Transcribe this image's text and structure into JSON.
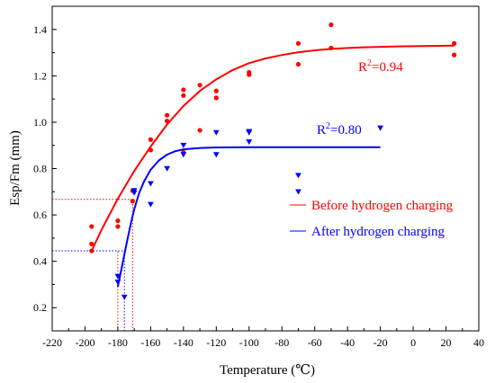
{
  "chart_data": {
    "type": "scatter",
    "xlabel": "Temperature (℃)",
    "ylabel": "Esp/Fm (mm)",
    "xlim": [
      -220,
      40
    ],
    "ylim": [
      0.1,
      1.5
    ],
    "xticks": [
      -220,
      -200,
      -180,
      -160,
      -140,
      -120,
      -100,
      -80,
      -60,
      -40,
      -20,
      0,
      20,
      40
    ],
    "yticks": [
      0.2,
      0.4,
      0.6,
      0.8,
      1.0,
      1.2,
      1.4
    ],
    "ytick_labels": [
      "0.2",
      "0.4",
      "0.6",
      "0.8",
      "1.0",
      "1.2",
      "1.4"
    ],
    "grid": false,
    "legend_position": "right, below curves",
    "series": [
      {
        "name": "Before hydrogen charging",
        "color": "#ff0000",
        "marker": "circle",
        "r2_label": "R",
        "r2_sup": "2",
        "r2_value": "=0.94",
        "points": [
          [
            -196,
            0.55
          ],
          [
            -196,
            0.475
          ],
          [
            -196,
            0.445
          ],
          [
            -180,
            0.575
          ],
          [
            -180,
            0.55
          ],
          [
            -171,
            0.705
          ],
          [
            -171,
            0.66
          ],
          [
            -160,
            0.925
          ],
          [
            -160,
            0.88
          ],
          [
            -140,
            1.14
          ],
          [
            -140,
            1.115
          ],
          [
            -140,
            0.87
          ],
          [
            -150,
            1.03
          ],
          [
            -150,
            1.005
          ],
          [
            -130,
            1.16
          ],
          [
            -130,
            0.965
          ],
          [
            -120,
            1.135
          ],
          [
            -120,
            1.105
          ],
          [
            -100,
            1.215
          ],
          [
            -100,
            1.205
          ],
          [
            -70,
            1.34
          ],
          [
            -70,
            1.25
          ],
          [
            -50,
            1.42
          ],
          [
            -50,
            1.32
          ],
          [
            25,
            1.34
          ],
          [
            25,
            1.29
          ]
        ],
        "fit": [
          [
            -196,
            0.445
          ],
          [
            -190,
            0.535
          ],
          [
            -180,
            0.67
          ],
          [
            -170,
            0.79
          ],
          [
            -160,
            0.895
          ],
          [
            -150,
            0.99
          ],
          [
            -140,
            1.07
          ],
          [
            -130,
            1.135
          ],
          [
            -120,
            1.185
          ],
          [
            -110,
            1.225
          ],
          [
            -100,
            1.255
          ],
          [
            -90,
            1.275
          ],
          [
            -80,
            1.29
          ],
          [
            -70,
            1.302
          ],
          [
            -60,
            1.31
          ],
          [
            -50,
            1.316
          ],
          [
            -40,
            1.32
          ],
          [
            -30,
            1.323
          ],
          [
            -20,
            1.325
          ],
          [
            -10,
            1.327
          ],
          [
            0,
            1.328
          ],
          [
            10,
            1.329
          ],
          [
            25,
            1.33
          ]
        ]
      },
      {
        "name": "After hydrogen charging",
        "color": "#0000ff",
        "marker": "triangle-down",
        "r2_label": "R",
        "r2_sup": "2",
        "r2_value": "=0.80",
        "points": [
          [
            -180,
            0.335
          ],
          [
            -180,
            0.31
          ],
          [
            -176,
            0.245
          ],
          [
            -170,
            0.705
          ],
          [
            -170,
            0.695
          ],
          [
            -160,
            0.735
          ],
          [
            -160,
            0.645
          ],
          [
            -150,
            0.8
          ],
          [
            -140,
            0.9
          ],
          [
            -140,
            0.86
          ],
          [
            -120,
            0.955
          ],
          [
            -120,
            0.86
          ],
          [
            -100,
            0.96
          ],
          [
            -100,
            0.955
          ],
          [
            -100,
            0.915
          ],
          [
            -70,
            0.77
          ],
          [
            -70,
            0.7
          ],
          [
            -20,
            0.975
          ]
        ],
        "fit": [
          [
            -180,
            0.29
          ],
          [
            -178,
            0.36
          ],
          [
            -176,
            0.43
          ],
          [
            -174,
            0.5
          ],
          [
            -172,
            0.565
          ],
          [
            -170,
            0.625
          ],
          [
            -167,
            0.695
          ],
          [
            -164,
            0.745
          ],
          [
            -160,
            0.795
          ],
          [
            -155,
            0.835
          ],
          [
            -150,
            0.86
          ],
          [
            -145,
            0.875
          ],
          [
            -140,
            0.883
          ],
          [
            -130,
            0.889
          ],
          [
            -120,
            0.891
          ],
          [
            -100,
            0.892
          ],
          [
            -80,
            0.892
          ],
          [
            -60,
            0.892
          ],
          [
            -40,
            0.892
          ],
          [
            -20,
            0.892
          ]
        ]
      }
    ],
    "reference_lines": [
      {
        "color": "#ff0000",
        "x": -171,
        "y": 0.667
      },
      {
        "color": "#ff0000",
        "x": -180,
        "y": 0.445
      },
      {
        "color": "#0000ff",
        "x": -176,
        "y": 0.445
      }
    ]
  }
}
